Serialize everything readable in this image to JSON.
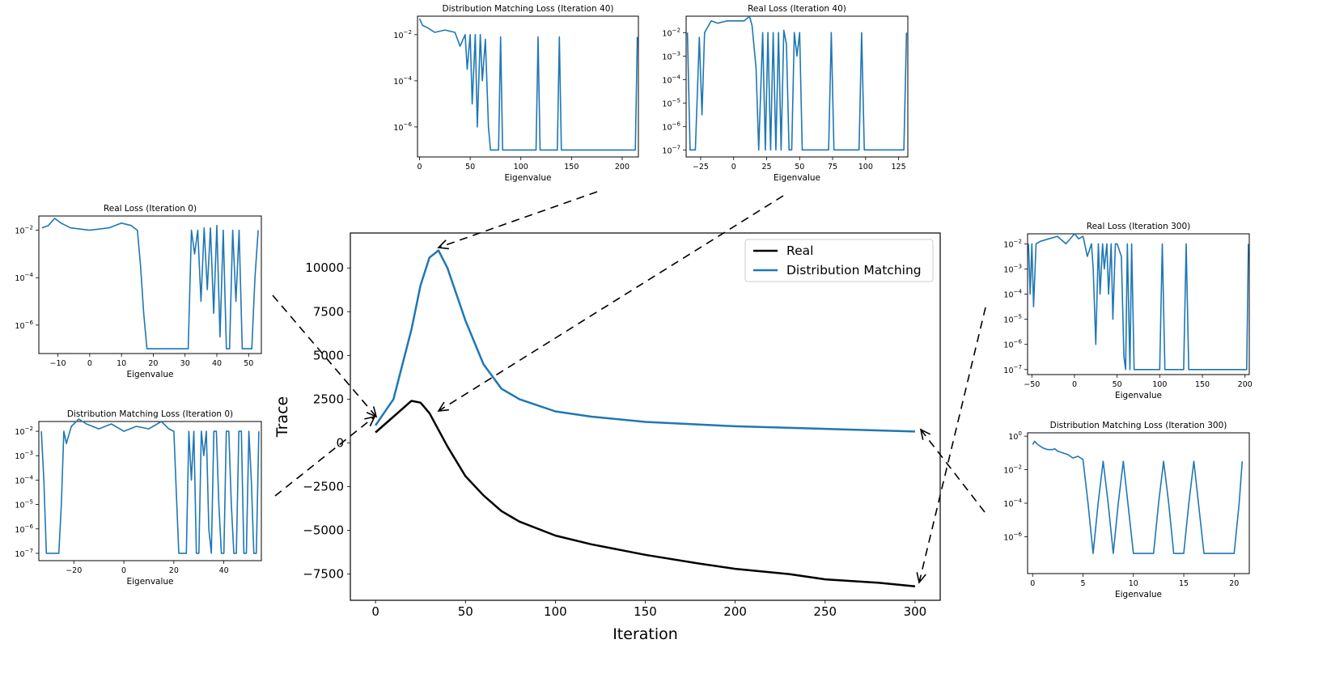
{
  "colors": {
    "real": "#000000",
    "dm": "#1f77b4",
    "axis": "#000000"
  },
  "chart_data": [
    {
      "id": "main",
      "type": "line",
      "title": "",
      "xlabel": "Iteration",
      "ylabel": "Trace",
      "xlim": [
        -14,
        314
      ],
      "ylim": [
        -9000,
        12000
      ],
      "xticks": [
        0,
        50,
        100,
        150,
        200,
        250,
        300
      ],
      "xticklabels": [
        "0",
        "50",
        "100",
        "150",
        "200",
        "250",
        "300"
      ],
      "yticks": [
        -7500,
        -5000,
        -2500,
        0,
        2500,
        5000,
        7500,
        10000
      ],
      "yticklabels": [
        "−7500",
        "−5000",
        "−2500",
        "0",
        "2500",
        "5000",
        "7500",
        "10000"
      ],
      "legend": {
        "position": "top-right",
        "entries": [
          "Real",
          "Distribution Matching"
        ]
      },
      "series": [
        {
          "name": "Real",
          "color": "black",
          "x": [
            0,
            10,
            20,
            25,
            30,
            40,
            50,
            60,
            70,
            80,
            100,
            120,
            150,
            180,
            200,
            230,
            250,
            280,
            300
          ],
          "values": [
            600,
            1500,
            2400,
            2300,
            1700,
            -200,
            -1900,
            -3000,
            -3900,
            -4500,
            -5300,
            -5800,
            -6400,
            -6900,
            -7200,
            -7500,
            -7800,
            -8000,
            -8200
          ]
        },
        {
          "name": "Distribution Matching",
          "color": "blue",
          "x": [
            0,
            10,
            20,
            25,
            30,
            35,
            40,
            50,
            60,
            70,
            80,
            100,
            120,
            150,
            200,
            250,
            300
          ],
          "values": [
            1000,
            2500,
            6500,
            9000,
            10600,
            11000,
            10000,
            7000,
            4500,
            3100,
            2500,
            1800,
            1500,
            1200,
            950,
            800,
            650
          ]
        }
      ]
    },
    {
      "id": "real0",
      "type": "line",
      "title": "Real Loss (Iteration 0)",
      "xlabel": "Eigenvalue",
      "xlim": [
        -16,
        54
      ],
      "logy": true,
      "ylim_exp": [
        -7.2,
        -1.4
      ],
      "xticks": [
        -10,
        0,
        10,
        20,
        30,
        40,
        50
      ],
      "xticklabels": [
        "−10",
        "0",
        "10",
        "20",
        "30",
        "40",
        "50"
      ],
      "yticks": [
        -2,
        -4,
        -6
      ],
      "yticklabels": [
        "10",
        "10",
        "10"
      ],
      "ytickexps": [
        "−2",
        "−4",
        "−6"
      ],
      "series": [
        {
          "name": "spectrum",
          "x": [
            -15,
            -13,
            -11,
            -9,
            -6,
            0,
            6,
            10,
            13,
            15,
            16,
            17,
            18,
            31,
            32,
            33,
            34,
            35,
            36,
            37,
            38,
            39,
            40,
            41,
            42,
            43,
            44,
            45,
            46,
            47,
            48,
            49,
            50,
            51,
            52,
            53
          ],
          "values": [
            -1.9,
            -1.8,
            -1.5,
            -1.7,
            -1.9,
            -2.0,
            -1.9,
            -1.7,
            -1.8,
            -2.0,
            -3.5,
            -5.5,
            -7.0,
            -7.0,
            -2.0,
            -3.0,
            -2.0,
            -5.0,
            -1.9,
            -4.5,
            -1.9,
            -5.5,
            -1.8,
            -6.5,
            -2.0,
            -7.0,
            -7.0,
            -2.0,
            -5.0,
            -2.0,
            -7.0,
            -7.0,
            -7.0,
            -7.0,
            -4.0,
            -2.0
          ]
        }
      ]
    },
    {
      "id": "dm0",
      "type": "line",
      "title": "Distribution Matching Loss (Iteration 0)",
      "xlabel": "Eigenvalue",
      "xlim": [
        -34,
        55
      ],
      "logy": true,
      "ylim_exp": [
        -7.3,
        -1.6
      ],
      "xticks": [
        -20,
        0,
        20,
        40
      ],
      "xticklabels": [
        "−20",
        "0",
        "20",
        "40"
      ],
      "yticks": [
        -2,
        -3,
        -4,
        -5,
        -6,
        -7
      ],
      "yticklabels": [
        "10",
        "10",
        "10",
        "10",
        "10",
        "10"
      ],
      "ytickexps": [
        "−2",
        "−3",
        "−4",
        "−5",
        "−6",
        "−7"
      ],
      "series": [
        {
          "name": "spectrum",
          "x": [
            -33,
            -32,
            -31,
            -30,
            -26,
            -25,
            -24,
            -23,
            -21,
            -18,
            -15,
            -10,
            -5,
            0,
            5,
            10,
            15,
            18,
            20,
            21,
            22,
            23,
            25,
            26,
            27,
            28,
            29,
            30,
            31,
            32,
            33,
            34,
            35,
            36,
            37,
            38,
            39,
            40,
            41,
            42,
            43,
            44,
            45,
            46,
            47,
            48,
            49,
            50,
            51,
            52,
            53,
            54
          ],
          "values": [
            -2.0,
            -4.0,
            -7.0,
            -7.0,
            -7.0,
            -5.0,
            -2.0,
            -2.5,
            -1.8,
            -1.5,
            -1.7,
            -1.9,
            -1.7,
            -2.0,
            -1.8,
            -1.9,
            -1.6,
            -1.9,
            -2.0,
            -4.5,
            -7.0,
            -7.0,
            -7.0,
            -2.0,
            -4.0,
            -2.0,
            -7.0,
            -7.0,
            -2.0,
            -3.0,
            -2.0,
            -6.0,
            -7.0,
            -2.0,
            -2.0,
            -5.0,
            -7.0,
            -7.0,
            -2.0,
            -2.0,
            -5.0,
            -7.0,
            -7.0,
            -2.0,
            -2.0,
            -7.0,
            -7.0,
            -2.0,
            -4.0,
            -7.0,
            -7.0,
            -2.0
          ]
        }
      ]
    },
    {
      "id": "dm40",
      "type": "line",
      "title": "Distribution Matching Loss (Iteration 40)",
      "xlabel": "Eigenvalue",
      "xlim": [
        -2,
        216
      ],
      "logy": true,
      "ylim_exp": [
        -7.3,
        -1.2
      ],
      "xticks": [
        0,
        50,
        100,
        150,
        200
      ],
      "xticklabels": [
        "0",
        "50",
        "100",
        "150",
        "200"
      ],
      "yticks": [
        -2,
        -4,
        -6
      ],
      "yticklabels": [
        "10",
        "10",
        "10"
      ],
      "ytickexps": [
        "−2",
        "−4",
        "−6"
      ],
      "series": [
        {
          "name": "spectrum",
          "x": [
            0,
            3,
            8,
            15,
            25,
            35,
            40,
            45,
            47,
            50,
            52,
            55,
            57,
            60,
            62,
            65,
            68,
            70,
            78,
            80,
            82,
            115,
            117,
            119,
            136,
            138,
            140,
            213,
            215
          ],
          "values": [
            -1.3,
            -1.6,
            -1.7,
            -1.9,
            -1.8,
            -1.9,
            -2.5,
            -2.0,
            -3.5,
            -2.0,
            -5.0,
            -2.0,
            -6.0,
            -2.0,
            -4.0,
            -2.2,
            -6.0,
            -7.0,
            -7.0,
            -2.1,
            -7.0,
            -7.0,
            -2.1,
            -7.0,
            -7.0,
            -2.1,
            -7.0,
            -7.0,
            -2.1
          ]
        }
      ]
    },
    {
      "id": "real40",
      "type": "line",
      "title": "Real Loss (Iteration 40)",
      "xlabel": "Eigenvalue",
      "xlim": [
        -36,
        132
      ],
      "logy": true,
      "ylim_exp": [
        -7.3,
        -1.3
      ],
      "xticks": [
        -25,
        0,
        25,
        50,
        75,
        100,
        125
      ],
      "xticklabels": [
        "−25",
        "0",
        "25",
        "50",
        "75",
        "100",
        "125"
      ],
      "yticks": [
        -2,
        -3,
        -4,
        -5,
        -6,
        -7
      ],
      "yticklabels": [
        "10",
        "10",
        "10",
        "10",
        "10",
        "10"
      ],
      "ytickexps": [
        "−2",
        "−3",
        "−4",
        "−5",
        "−6",
        "−7"
      ],
      "series": [
        {
          "name": "spectrum",
          "x": [
            -35,
            -33,
            -29,
            -26,
            -24,
            -22,
            -20,
            -17,
            -12,
            -5,
            2,
            8,
            12,
            14,
            17,
            19,
            22,
            24,
            26,
            28,
            30,
            32,
            34,
            36,
            38,
            40,
            42,
            44,
            46,
            48,
            50,
            52,
            72,
            74,
            76,
            95,
            97,
            99,
            129,
            131
          ],
          "values": [
            -2.0,
            -7.0,
            -7.0,
            -2.2,
            -5.5,
            -2.0,
            -1.8,
            -1.5,
            -1.6,
            -1.5,
            -1.5,
            -1.5,
            -1.3,
            -1.7,
            -3.5,
            -7.0,
            -2.0,
            -7.0,
            -2.0,
            -7.0,
            -2.0,
            -7.0,
            -2.0,
            -7.0,
            -1.9,
            -2.5,
            -7.0,
            -7.0,
            -2.0,
            -3.0,
            -2.0,
            -7.0,
            -7.0,
            -2.0,
            -7.0,
            -7.0,
            -2.0,
            -7.0,
            -7.0,
            -2.0
          ]
        }
      ]
    },
    {
      "id": "real300",
      "type": "line",
      "title": "Real Loss (Iteration 300)",
      "xlabel": "Eigenvalue",
      "xlim": [
        -55,
        205
      ],
      "logy": true,
      "ylim_exp": [
        -7.2,
        -1.6
      ],
      "xticks": [
        -50,
        0,
        50,
        100,
        150,
        200
      ],
      "xticklabels": [
        "−50",
        "0",
        "50",
        "100",
        "150",
        "200"
      ],
      "yticks": [
        -2,
        -3,
        -4,
        -5,
        -6,
        -7
      ],
      "yticklabels": [
        "10",
        "10",
        "10",
        "10",
        "10",
        "10"
      ],
      "ytickexps": [
        "−2",
        "−3",
        "−4",
        "−5",
        "−6",
        "−7"
      ],
      "series": [
        {
          "name": "spectrum",
          "x": [
            -54,
            -52,
            -50,
            -48,
            -45,
            -40,
            -30,
            -20,
            -10,
            0,
            5,
            10,
            12,
            15,
            20,
            22,
            25,
            28,
            30,
            33,
            35,
            38,
            40,
            43,
            45,
            48,
            50,
            55,
            58,
            60,
            62,
            65,
            67,
            70,
            72,
            75,
            100,
            103,
            106,
            128,
            131,
            134,
            202,
            204
          ],
          "values": [
            -2.0,
            -4.0,
            -2.0,
            -4.5,
            -2.0,
            -1.9,
            -1.8,
            -1.7,
            -2.0,
            -1.6,
            -1.8,
            -1.7,
            -2.0,
            -2.5,
            -2.0,
            -3.0,
            -6.0,
            -2.0,
            -4.0,
            -2.0,
            -3.0,
            -2.0,
            -4.0,
            -2.0,
            -5.0,
            -2.0,
            -2.0,
            -2.5,
            -6.5,
            -7.0,
            -2.0,
            -7.0,
            -2.0,
            -7.0,
            -7.0,
            -7.0,
            -7.0,
            -2.0,
            -7.0,
            -7.0,
            -2.0,
            -7.0,
            -7.0,
            -2.0
          ]
        }
      ]
    },
    {
      "id": "dm300",
      "type": "line",
      "title": "Distribution Matching Loss (Iteration 300)",
      "xlabel": "Eigenvalue",
      "xlim": [
        -0.5,
        21.5
      ],
      "logy": true,
      "ylim_exp": [
        -8.2,
        0.2
      ],
      "xticks": [
        0,
        5,
        10,
        15,
        20
      ],
      "xticklabels": [
        "0",
        "5",
        "10",
        "15",
        "20"
      ],
      "yticks": [
        0,
        -2,
        -4,
        -6
      ],
      "yticklabels": [
        "10",
        "10",
        "10",
        "10"
      ],
      "ytickexps": [
        "0",
        "−2",
        "−4",
        "−6"
      ],
      "series": [
        {
          "name": "spectrum",
          "x": [
            0,
            0.2,
            0.5,
            1.0,
            1.5,
            2.0,
            2.2,
            2.5,
            3.0,
            3.5,
            4.0,
            4.5,
            5.0,
            5.5,
            6.0,
            6.5,
            7.0,
            7.5,
            8.0,
            8.5,
            9.0,
            10.0,
            11.0,
            12.0,
            12.5,
            13.0,
            13.5,
            14.0,
            15.0,
            15.5,
            16.0,
            17.0,
            18.0,
            19.0,
            20.0,
            20.5,
            20.8
          ],
          "values": [
            -0.5,
            -0.3,
            -0.5,
            -0.7,
            -0.8,
            -0.8,
            -0.75,
            -0.9,
            -1.0,
            -1.1,
            -1.3,
            -1.2,
            -1.4,
            -4.0,
            -7.0,
            -4.0,
            -1.5,
            -4.0,
            -7.0,
            -4.0,
            -1.5,
            -7.0,
            -7.0,
            -7.0,
            -4.0,
            -1.5,
            -4.0,
            -7.0,
            -7.0,
            -4.0,
            -1.5,
            -7.0,
            -7.0,
            -7.0,
            -7.0,
            -4.0,
            -1.5
          ]
        }
      ]
    }
  ]
}
